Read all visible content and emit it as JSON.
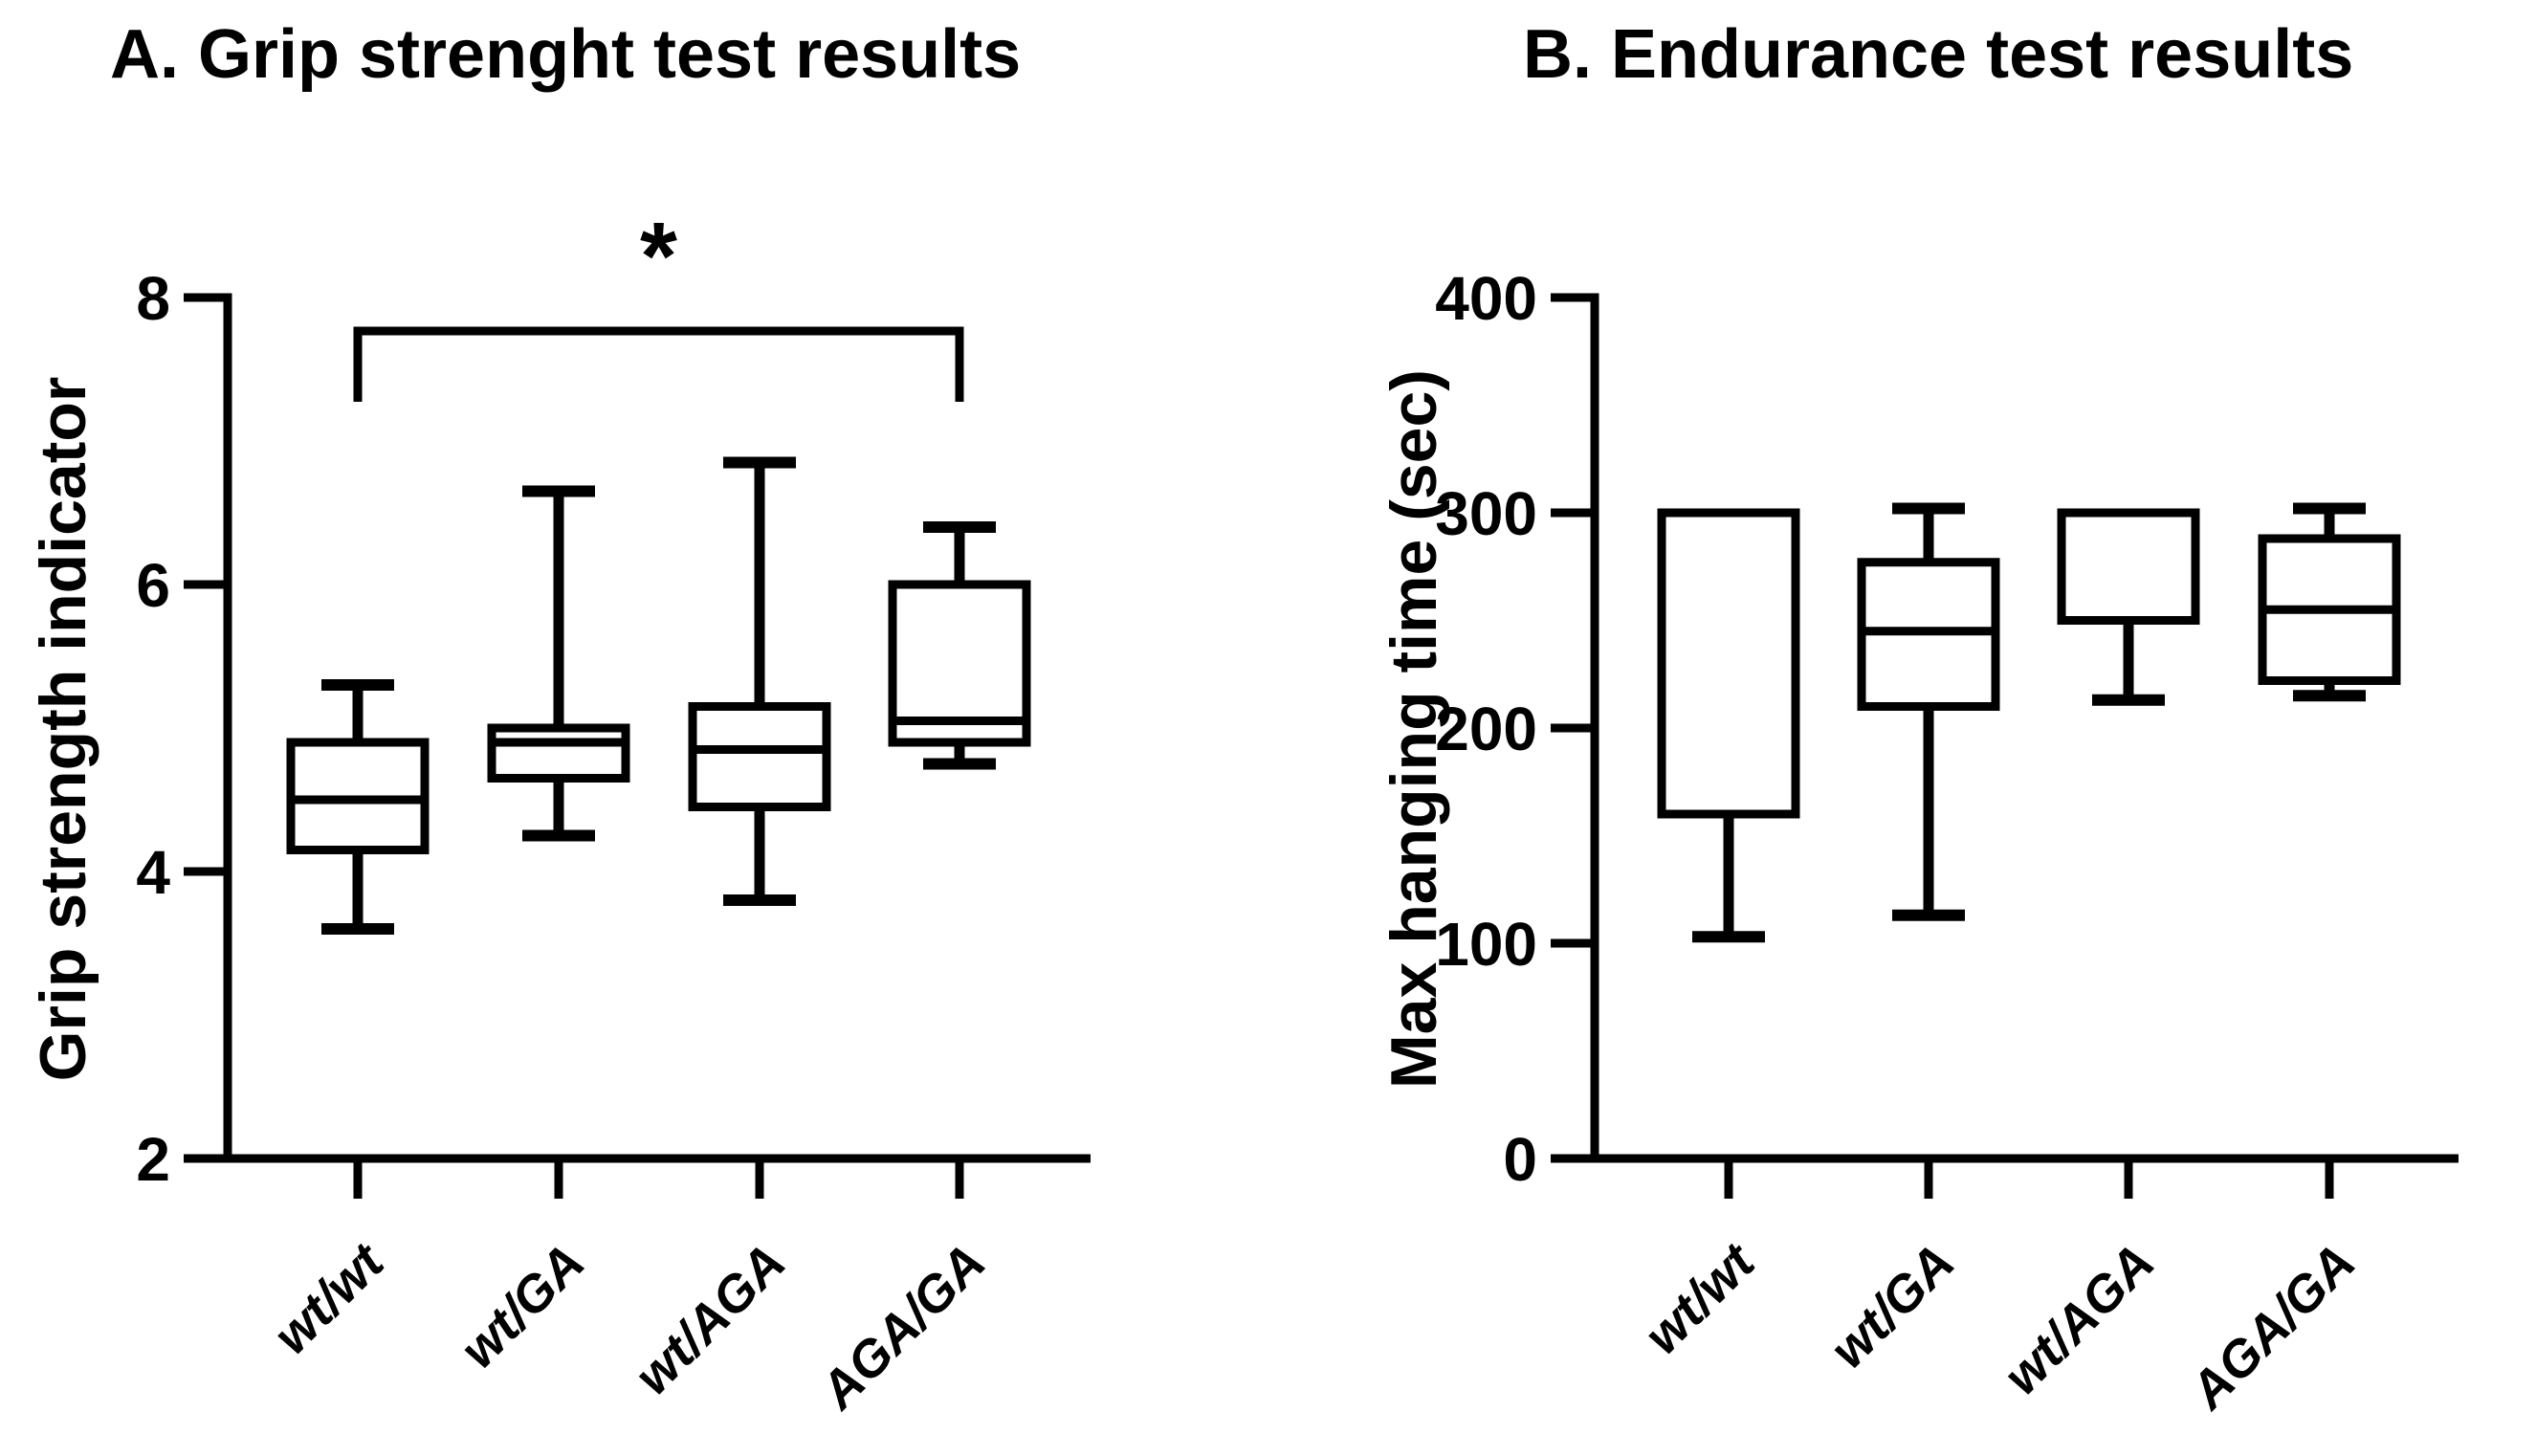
{
  "figure": {
    "background_color": "#ffffff",
    "ink_color": "#000000"
  },
  "chart_data": [
    {
      "type": "box",
      "panel": "A",
      "title": "A. Grip strenght test results",
      "xlabel": "",
      "ylabel": "Grip strength indicator",
      "categories": [
        "wt/wt",
        "wt/GA",
        "wt/AGA",
        "AGA/GA"
      ],
      "series": [
        {
          "name": "wt/wt",
          "min": 3.6,
          "q1": 4.15,
          "median": 4.5,
          "q3": 4.9,
          "max": 5.3
        },
        {
          "name": "wt/GA",
          "min": 4.25,
          "q1": 4.65,
          "median": 4.9,
          "q3": 5.0,
          "max": 6.65
        },
        {
          "name": "wt/AGA",
          "min": 3.8,
          "q1": 4.45,
          "median": 4.85,
          "q3": 5.15,
          "max": 6.85
        },
        {
          "name": "AGA/GA",
          "min": 4.75,
          "q1": 4.9,
          "median": 5.05,
          "q3": 6.0,
          "max": 6.4
        }
      ],
      "ylim": [
        2,
        8
      ],
      "yticks": [
        2,
        4,
        6,
        8
      ],
      "grid": false,
      "legend": "none",
      "annotations": [
        {
          "type": "significance-bracket",
          "text": "*",
          "between": [
            "wt/wt",
            "AGA/GA"
          ]
        }
      ]
    },
    {
      "type": "box",
      "panel": "B",
      "title": "B. Endurance test results",
      "xlabel": "",
      "ylabel": "Max hanging time (sec)",
      "categories": [
        "wt/wt",
        "wt/GA",
        "wt/AGA",
        "AGA/GA"
      ],
      "series": [
        {
          "name": "wt/wt",
          "min": 103,
          "q1": 160,
          "median": 300,
          "q3": 300,
          "max": 300
        },
        {
          "name": "wt/GA",
          "min": 113,
          "q1": 210,
          "median": 245,
          "q3": 277,
          "max": 302
        },
        {
          "name": "wt/AGA",
          "min": 213,
          "q1": 250,
          "median": 300,
          "q3": 300,
          "max": 300
        },
        {
          "name": "AGA/GA",
          "min": 215,
          "q1": 222,
          "median": 255,
          "q3": 288,
          "max": 302
        }
      ],
      "ylim": [
        0,
        400
      ],
      "yticks": [
        0,
        100,
        200,
        300,
        400
      ],
      "grid": false,
      "legend": "none",
      "annotations": []
    }
  ]
}
